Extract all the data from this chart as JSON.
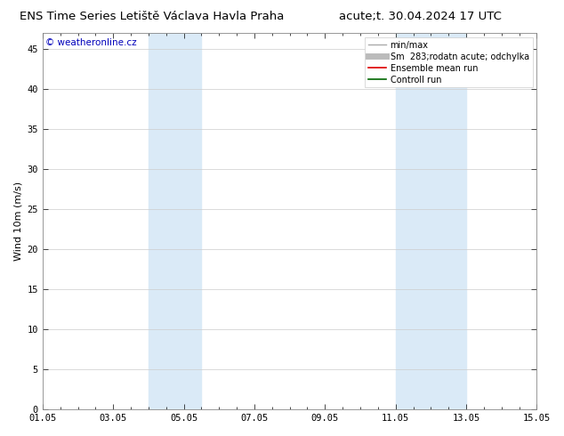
{
  "title_left": "ENS Time Series Letiště Václava Havla Praha",
  "title_right": "acute;t. 30.04.2024 17 UTC",
  "ylabel": "Wind 10m (m/s)",
  "ylim": [
    0,
    47
  ],
  "yticks": [
    0,
    5,
    10,
    15,
    20,
    25,
    30,
    35,
    40,
    45
  ],
  "xlim_start": 0,
  "xlim_end": 14,
  "xtick_positions": [
    0,
    2,
    4,
    6,
    8,
    10,
    12,
    14
  ],
  "xtick_labels": [
    "01.05",
    "03.05",
    "05.05",
    "07.05",
    "09.05",
    "11.05",
    "13.05",
    "15.05"
  ],
  "shaded_bands": [
    {
      "xmin": 3.0,
      "xmax": 4.5
    },
    {
      "xmin": 10.0,
      "xmax": 12.0
    }
  ],
  "band_color": "#daeaf7",
  "watermark_text": "© weatheronline.cz",
  "watermark_color": "#0000bb",
  "legend_items": [
    {
      "label": "min/max",
      "color": "#aaaaaa",
      "lw": 1.0
    },
    {
      "label": "Sm  283;rodatn acute; odchylka",
      "color": "#bbbbbb",
      "lw": 5
    },
    {
      "label": "Ensemble mean run",
      "color": "#dd0000",
      "lw": 1.2
    },
    {
      "label": "Controll run",
      "color": "#006600",
      "lw": 1.2
    }
  ],
  "bg_color": "#ffffff",
  "grid_color": "#cccccc",
  "title_fontsize": 9.5,
  "tick_fontsize": 7.5,
  "ylabel_fontsize": 8,
  "legend_fontsize": 7,
  "watermark_fontsize": 7.5
}
